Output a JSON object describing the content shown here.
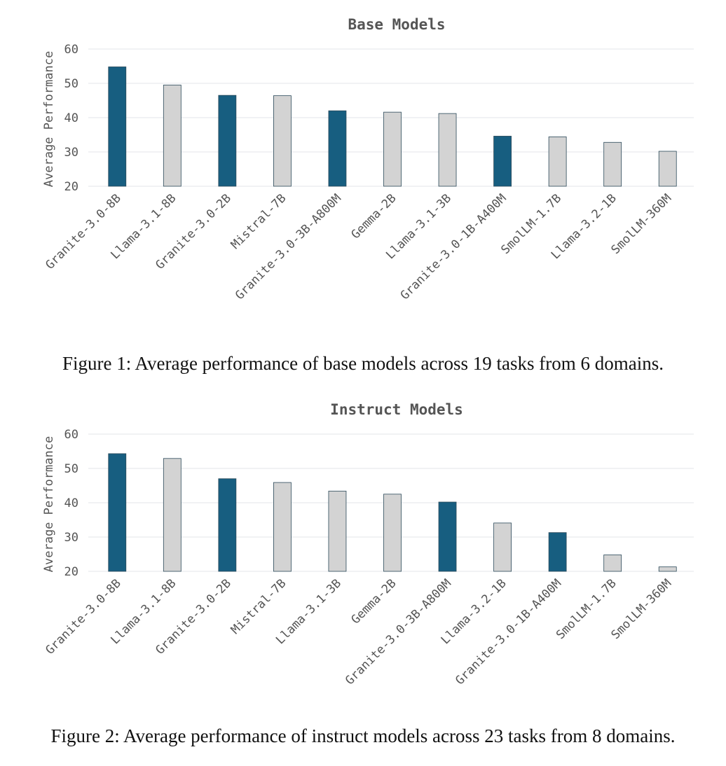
{
  "chart_data": [
    {
      "type": "bar",
      "title": "Base Models",
      "ylabel": "Average Performance",
      "xlabel": "",
      "ylim": [
        20,
        60
      ],
      "yticks": [
        20,
        30,
        40,
        50,
        60
      ],
      "grid": true,
      "categories": [
        "Granite-3.0-8B",
        "Llama-3.1-8B",
        "Granite-3.0-2B",
        "Mistral-7B",
        "Granite-3.0-3B-A800M",
        "Gemma-2B",
        "Llama-3.1-3B",
        "Granite-3.0-1B-A400M",
        "SmolLM-1.7B",
        "Llama-3.2-1B",
        "SmolLM-360M"
      ],
      "values": [
        54.8,
        49.5,
        46.5,
        46.4,
        42.0,
        41.6,
        41.2,
        34.6,
        34.4,
        32.8,
        30.2
      ],
      "highlight": [
        true,
        false,
        true,
        false,
        true,
        false,
        false,
        true,
        false,
        false,
        false
      ]
    },
    {
      "type": "bar",
      "title": "Instruct Models",
      "ylabel": "Average Performance",
      "xlabel": "",
      "ylim": [
        20,
        60
      ],
      "yticks": [
        20,
        30,
        40,
        50,
        60
      ],
      "grid": true,
      "categories": [
        "Granite-3.0-8B",
        "Llama-3.1-8B",
        "Granite-3.0-2B",
        "Mistral-7B",
        "Llama-3.1-3B",
        "Gemma-2B",
        "Granite-3.0-3B-A800M",
        "Llama-3.2-1B",
        "Granite-3.0-1B-A400M",
        "SmolLM-1.7B",
        "SmolLM-360M"
      ],
      "values": [
        54.3,
        52.9,
        47.0,
        45.9,
        43.4,
        42.5,
        40.2,
        34.1,
        31.3,
        24.8,
        21.3
      ],
      "highlight": [
        true,
        false,
        true,
        false,
        false,
        false,
        true,
        false,
        true,
        false,
        false
      ]
    }
  ],
  "captions": {
    "figure1": "Figure 1: Average performance of base models across 19 tasks from 6 domains.",
    "figure2": "Figure 2: Average performance of instruct models across 23 tasks from 8 domains."
  },
  "colors": {
    "highlight_bar": "#175e80",
    "other_bar": "#d3d3d3",
    "bar_edge": "#2c4a5a",
    "grid": "#e3e6ea",
    "text": "#555555"
  }
}
